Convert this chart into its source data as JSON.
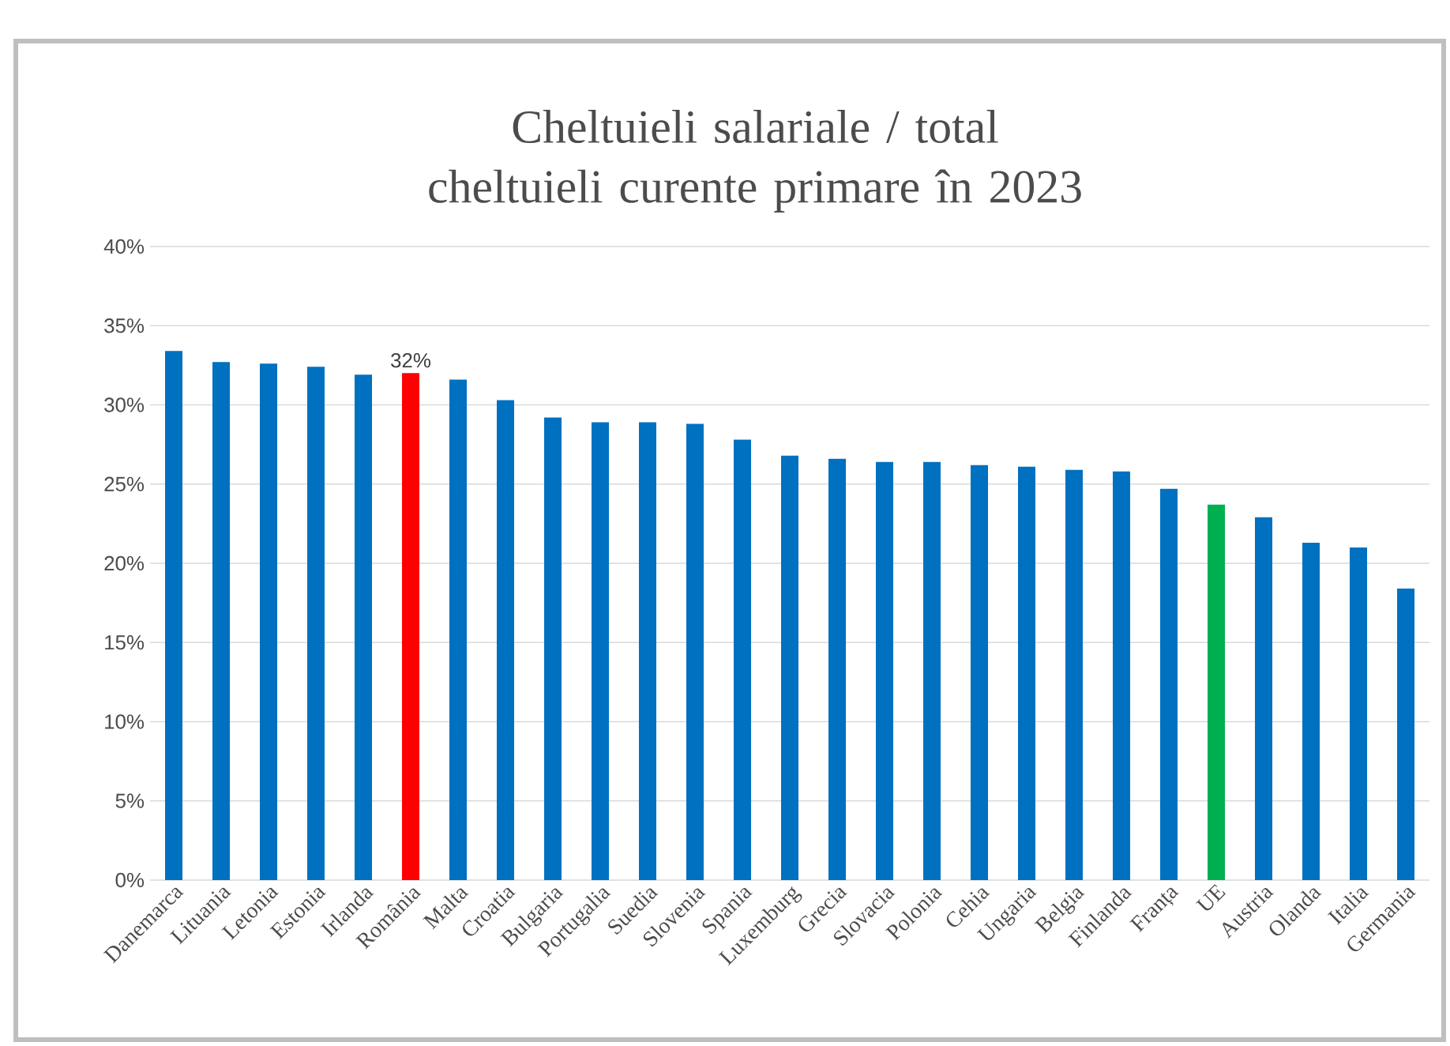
{
  "chart_data": {
    "type": "bar",
    "title": "Cheltuieli salariale / total cheltuieli curente primare în 2023",
    "categories": [
      "Danemarca",
      "Lituania",
      "Letonia",
      "Estonia",
      "Irlanda",
      "România",
      "Malta",
      "Croatia",
      "Bulgaria",
      "Portugalia",
      "Suedia",
      "Slovenia",
      "Spania",
      "Luxemburg",
      "Grecia",
      "Slovacia",
      "Polonia",
      "Cehia",
      "Ungaria",
      "Belgia",
      "Finlanda",
      "Franța",
      "UE",
      "Austria",
      "Olanda",
      "Italia",
      "Germania"
    ],
    "values": [
      33.4,
      32.7,
      32.6,
      32.4,
      31.9,
      32,
      31.6,
      30.3,
      29.2,
      28.9,
      28.9,
      28.8,
      27.8,
      26.8,
      26.6,
      26.4,
      26.4,
      26.2,
      26.1,
      25.9,
      25.8,
      24.7,
      23.7,
      22.9,
      21.3,
      21.0,
      18.4
    ],
    "colors": [
      "#0070c0",
      "#0070c0",
      "#0070c0",
      "#0070c0",
      "#0070c0",
      "#ff0000",
      "#0070c0",
      "#0070c0",
      "#0070c0",
      "#0070c0",
      "#0070c0",
      "#0070c0",
      "#0070c0",
      "#0070c0",
      "#0070c0",
      "#0070c0",
      "#0070c0",
      "#0070c0",
      "#0070c0",
      "#0070c0",
      "#0070c0",
      "#0070c0",
      "#00b050",
      "#0070c0",
      "#0070c0",
      "#0070c0",
      "#0070c0"
    ],
    "value_labels": [
      null,
      null,
      null,
      null,
      null,
      "32%",
      null,
      null,
      null,
      null,
      null,
      null,
      null,
      null,
      null,
      null,
      null,
      null,
      null,
      null,
      null,
      null,
      null,
      null,
      null,
      null,
      null
    ],
    "ylim": [
      0,
      40
    ],
    "yticks": [
      {
        "value": 0,
        "label": "0%"
      },
      {
        "value": 5,
        "label": "5%"
      },
      {
        "value": 10,
        "label": "10%"
      },
      {
        "value": 15,
        "label": "15%"
      },
      {
        "value": 20,
        "label": "20%"
      },
      {
        "value": 25,
        "label": "25%"
      },
      {
        "value": 30,
        "label": "30%"
      },
      {
        "value": 35,
        "label": "35%"
      },
      {
        "value": 40,
        "label": "40%"
      }
    ],
    "grid": "y"
  }
}
